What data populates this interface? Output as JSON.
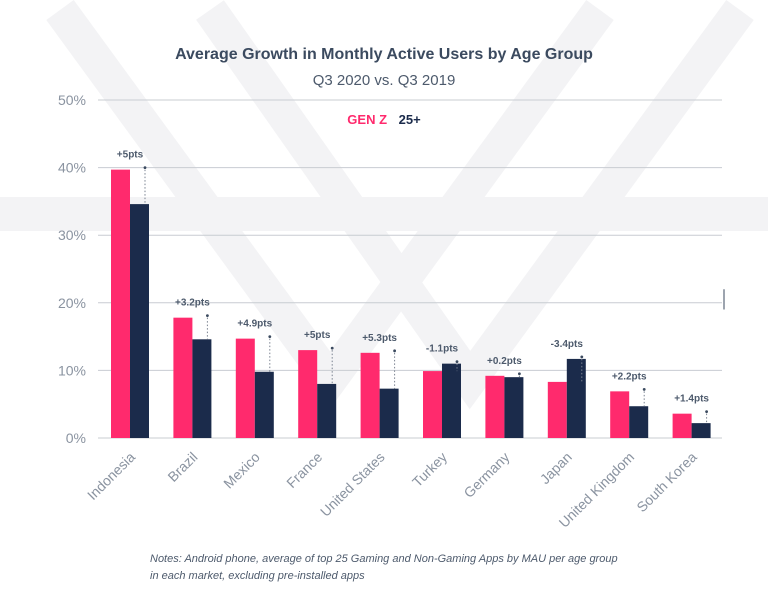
{
  "colors": {
    "gen_z": "#ff2a6d",
    "age_25_plus": "#1b2b4b",
    "axis_text": "#8a93a0",
    "grid": "#c8ccd2",
    "watermark": "#f3f3f5"
  },
  "chart_data": {
    "type": "bar",
    "title": "Average Growth in Monthly Active Users by Age Group",
    "subtitle": "Q3 2020 vs. Q3 2019",
    "categories": [
      "Indonesia",
      "Brazil",
      "Mexico",
      "France",
      "United States",
      "Turkey",
      "Germany",
      "Japan",
      "United Kingdom",
      "South Korea"
    ],
    "series": [
      {
        "name": "GEN Z",
        "values": [
          39.7,
          17.8,
          14.7,
          13.0,
          12.6,
          9.9,
          9.2,
          8.3,
          6.9,
          3.6
        ]
      },
      {
        "name": "25+",
        "values": [
          34.6,
          14.6,
          9.8,
          8.0,
          7.3,
          11.0,
          9.0,
          11.7,
          4.7,
          2.2
        ]
      }
    ],
    "difference_labels": [
      "+5pts",
      "+3.2pts",
      "+4.9pts",
      "+5pts",
      "+5.3pts",
      "-1.1pts",
      "+0.2pts",
      "-3.4pts",
      "+2.2pts",
      "+1.4pts"
    ],
    "y_ticks": [
      "0%",
      "10%",
      "20%",
      "30%",
      "40%",
      "50%"
    ],
    "ylim": [
      0,
      50
    ],
    "grid": true,
    "legend_position": "top-center"
  },
  "notes": "Notes: Android phone, average of top 25 Gaming and Non-Gaming Apps by MAU per age group in each market, excluding pre-installed apps"
}
